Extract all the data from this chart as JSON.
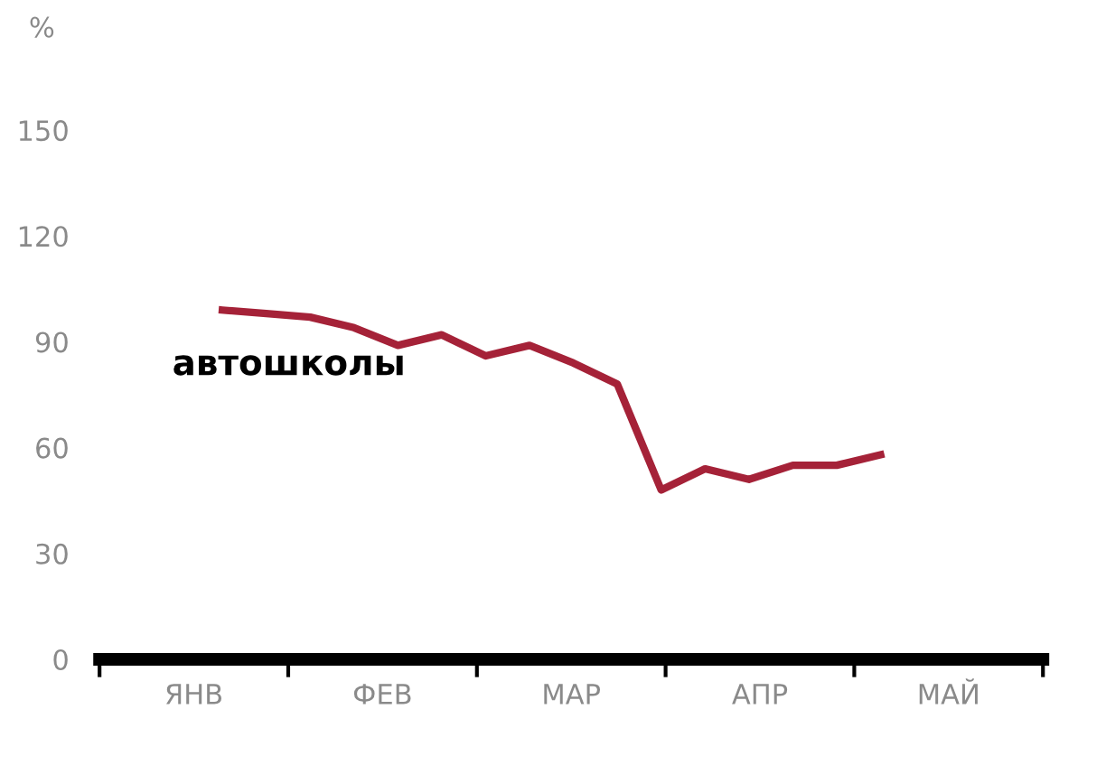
{
  "chart_data": {
    "type": "line",
    "ylabel": "%",
    "categories": [
      null,
      null,
      null,
      null,
      null,
      null,
      null,
      null,
      null,
      null,
      null,
      null,
      null,
      null,
      null,
      null
    ],
    "series": [
      {
        "name": "автошколы",
        "color": "#a52238",
        "values": [
          99,
          98,
          97,
          94,
          89,
          92,
          86,
          89,
          84,
          78,
          48,
          54,
          51,
          55,
          55,
          58
        ]
      }
    ],
    "annotations": [
      "ЯНВ",
      "ФЕВ",
      "МАР",
      "АПР",
      "МАЙ"
    ],
    "ylim": [
      0,
      150
    ],
    "yticks": [
      0,
      30,
      60,
      90,
      120,
      150
    ],
    "grid": false,
    "legend": false,
    "marker": "none",
    "line_style": "solid"
  }
}
